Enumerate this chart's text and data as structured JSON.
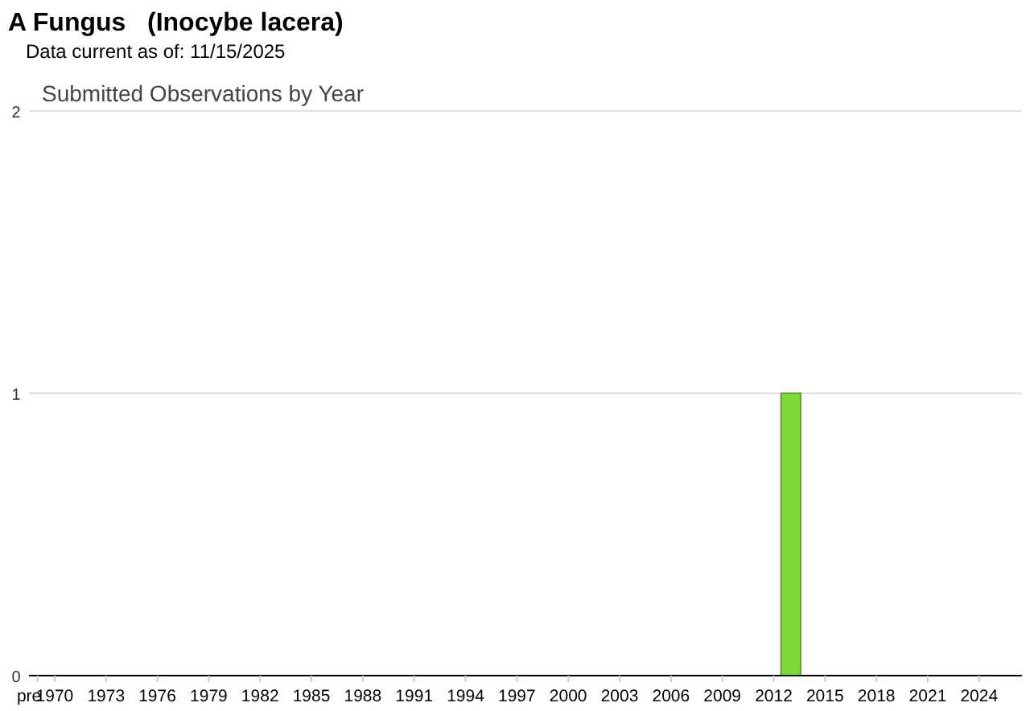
{
  "chart_data": {
    "type": "bar",
    "title": "A Fungus   (Inocybe lacera)",
    "subtitle": "Data current as of: 11/15/2025",
    "annotations": [
      "Submitted Observations by Year"
    ],
    "categories": [
      "pre",
      "1970",
      null,
      null,
      "1973",
      null,
      null,
      "1976",
      null,
      null,
      "1979",
      null,
      null,
      "1982",
      null,
      null,
      "1985",
      null,
      null,
      "1988",
      null,
      null,
      "1991",
      null,
      null,
      "1994",
      null,
      null,
      "1997",
      null,
      null,
      "2000",
      null,
      null,
      "2003",
      null,
      null,
      "2006",
      null,
      null,
      "2009",
      null,
      null,
      "2012",
      null,
      null,
      "2015",
      null,
      null,
      "2018",
      null,
      null,
      "2021",
      null,
      null,
      "2024",
      null,
      null
    ],
    "values": [
      0,
      0,
      0,
      0,
      0,
      0,
      0,
      0,
      0,
      0,
      0,
      0,
      0,
      0,
      0,
      0,
      0,
      0,
      0,
      0,
      0,
      0,
      0,
      0,
      0,
      0,
      0,
      0,
      0,
      0,
      0,
      0,
      0,
      0,
      0,
      0,
      0,
      0,
      0,
      0,
      0,
      0,
      0,
      0,
      1,
      0,
      0,
      0,
      0,
      0,
      0,
      0,
      0,
      0,
      0,
      0,
      0,
      0
    ],
    "color": "#7ed83a",
    "ylim": [
      0,
      2
    ],
    "yticks": [
      0,
      1,
      2
    ],
    "grid": "y"
  }
}
